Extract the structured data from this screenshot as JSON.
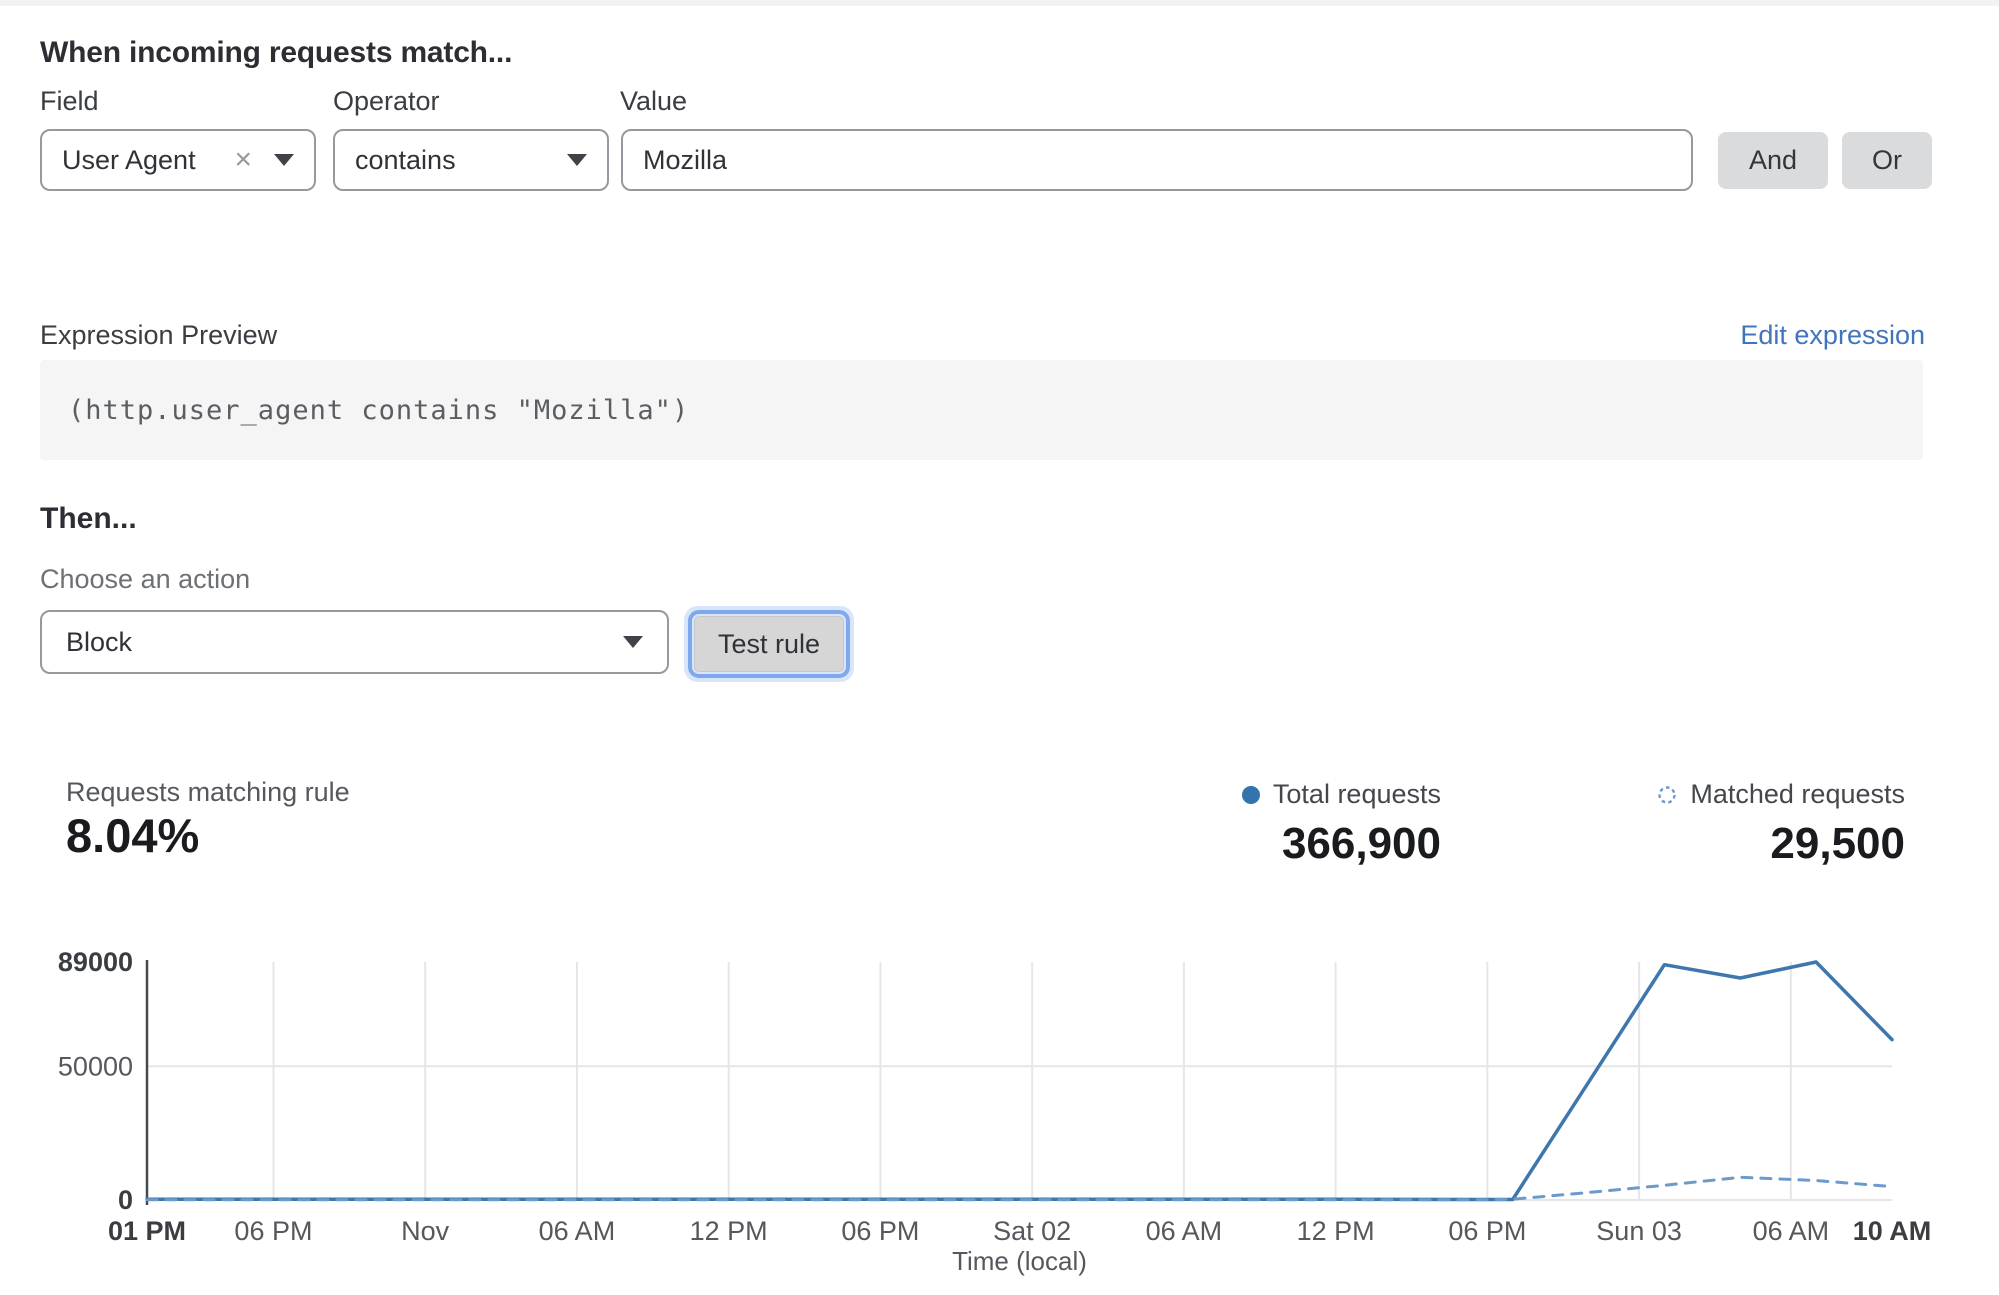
{
  "rule_builder": {
    "heading": "When incoming requests match...",
    "field": {
      "label": "Field",
      "value": "User Agent"
    },
    "operator": {
      "label": "Operator",
      "value": "contains"
    },
    "value_field": {
      "label": "Value",
      "value": "Mozilla"
    },
    "and_label": "And",
    "or_label": "Or"
  },
  "expression": {
    "label": "Expression Preview",
    "edit_link": "Edit expression",
    "code": "(http.user_agent contains \"Mozilla\")"
  },
  "action": {
    "heading": "Then...",
    "choose_label": "Choose an action",
    "selected": "Block",
    "test_button": "Test rule"
  },
  "stats": {
    "matching": {
      "label": "Requests matching rule",
      "value": "8.04%"
    },
    "total": {
      "label": "Total requests",
      "value": "366,900"
    },
    "matched": {
      "label": "Matched requests",
      "value": "29,500"
    }
  },
  "colors": {
    "line_solid": "#3d77ad",
    "line_dashed": "#6b9bcb",
    "legend_dot": "#3474ad",
    "link_blue": "#4274bc",
    "focus_ring": "#7fa9ec",
    "grid": "#e6e6e8",
    "axis": "#47494d",
    "tick_bold": "#3a3d42",
    "tick_normal": "#55585c"
  },
  "chart_data": {
    "type": "line",
    "title": "",
    "xlabel": "Time (local)",
    "ylabel": "",
    "x_unit": "hours_from_start",
    "x_range": [
      0,
      69
    ],
    "y_range": [
      0,
      89000
    ],
    "grid": {
      "vertical_at_ticks": true,
      "horizontal_at": [
        50000
      ]
    },
    "legend_position": "top-right",
    "yticks": [
      {
        "value": 0,
        "label": "0",
        "bold": true
      },
      {
        "value": 50000,
        "label": "50000",
        "bold": false
      },
      {
        "value": 89000,
        "label": "89000",
        "bold": true
      }
    ],
    "xticks": [
      {
        "t": 0,
        "label": "01 PM",
        "bold": true
      },
      {
        "t": 5,
        "label": "06 PM",
        "bold": false
      },
      {
        "t": 11,
        "label": "Nov",
        "bold": false
      },
      {
        "t": 17,
        "label": "06 AM",
        "bold": false
      },
      {
        "t": 23,
        "label": "12 PM",
        "bold": false
      },
      {
        "t": 29,
        "label": "06 PM",
        "bold": false
      },
      {
        "t": 35,
        "label": "Sat 02",
        "bold": false
      },
      {
        "t": 41,
        "label": "06 AM",
        "bold": false
      },
      {
        "t": 47,
        "label": "12 PM",
        "bold": false
      },
      {
        "t": 53,
        "label": "06 PM",
        "bold": false
      },
      {
        "t": 59,
        "label": "Sun 03",
        "bold": false
      },
      {
        "t": 65,
        "label": "06 AM",
        "bold": false
      },
      {
        "t": 69,
        "label": "10 AM",
        "bold": true
      }
    ],
    "series": [
      {
        "name": "Total requests",
        "style": "solid",
        "color": "#3d77ad",
        "points": [
          [
            0,
            300
          ],
          [
            5,
            300
          ],
          [
            11,
            300
          ],
          [
            17,
            300
          ],
          [
            23,
            300
          ],
          [
            29,
            300
          ],
          [
            35,
            300
          ],
          [
            41,
            300
          ],
          [
            47,
            300
          ],
          [
            53,
            200
          ],
          [
            54,
            200
          ],
          [
            57,
            44000
          ],
          [
            60,
            88000
          ],
          [
            63,
            83000
          ],
          [
            66,
            89000
          ],
          [
            69,
            60000
          ]
        ]
      },
      {
        "name": "Matched requests",
        "style": "dashed",
        "color": "#6b9bcb",
        "points": [
          [
            0,
            100
          ],
          [
            5,
            100
          ],
          [
            11,
            100
          ],
          [
            17,
            100
          ],
          [
            23,
            100
          ],
          [
            29,
            100
          ],
          [
            35,
            100
          ],
          [
            41,
            100
          ],
          [
            47,
            100
          ],
          [
            53,
            100
          ],
          [
            54,
            300
          ],
          [
            57,
            2800
          ],
          [
            60,
            5500
          ],
          [
            63,
            8500
          ],
          [
            66,
            7300
          ],
          [
            69,
            5000
          ]
        ]
      }
    ]
  }
}
